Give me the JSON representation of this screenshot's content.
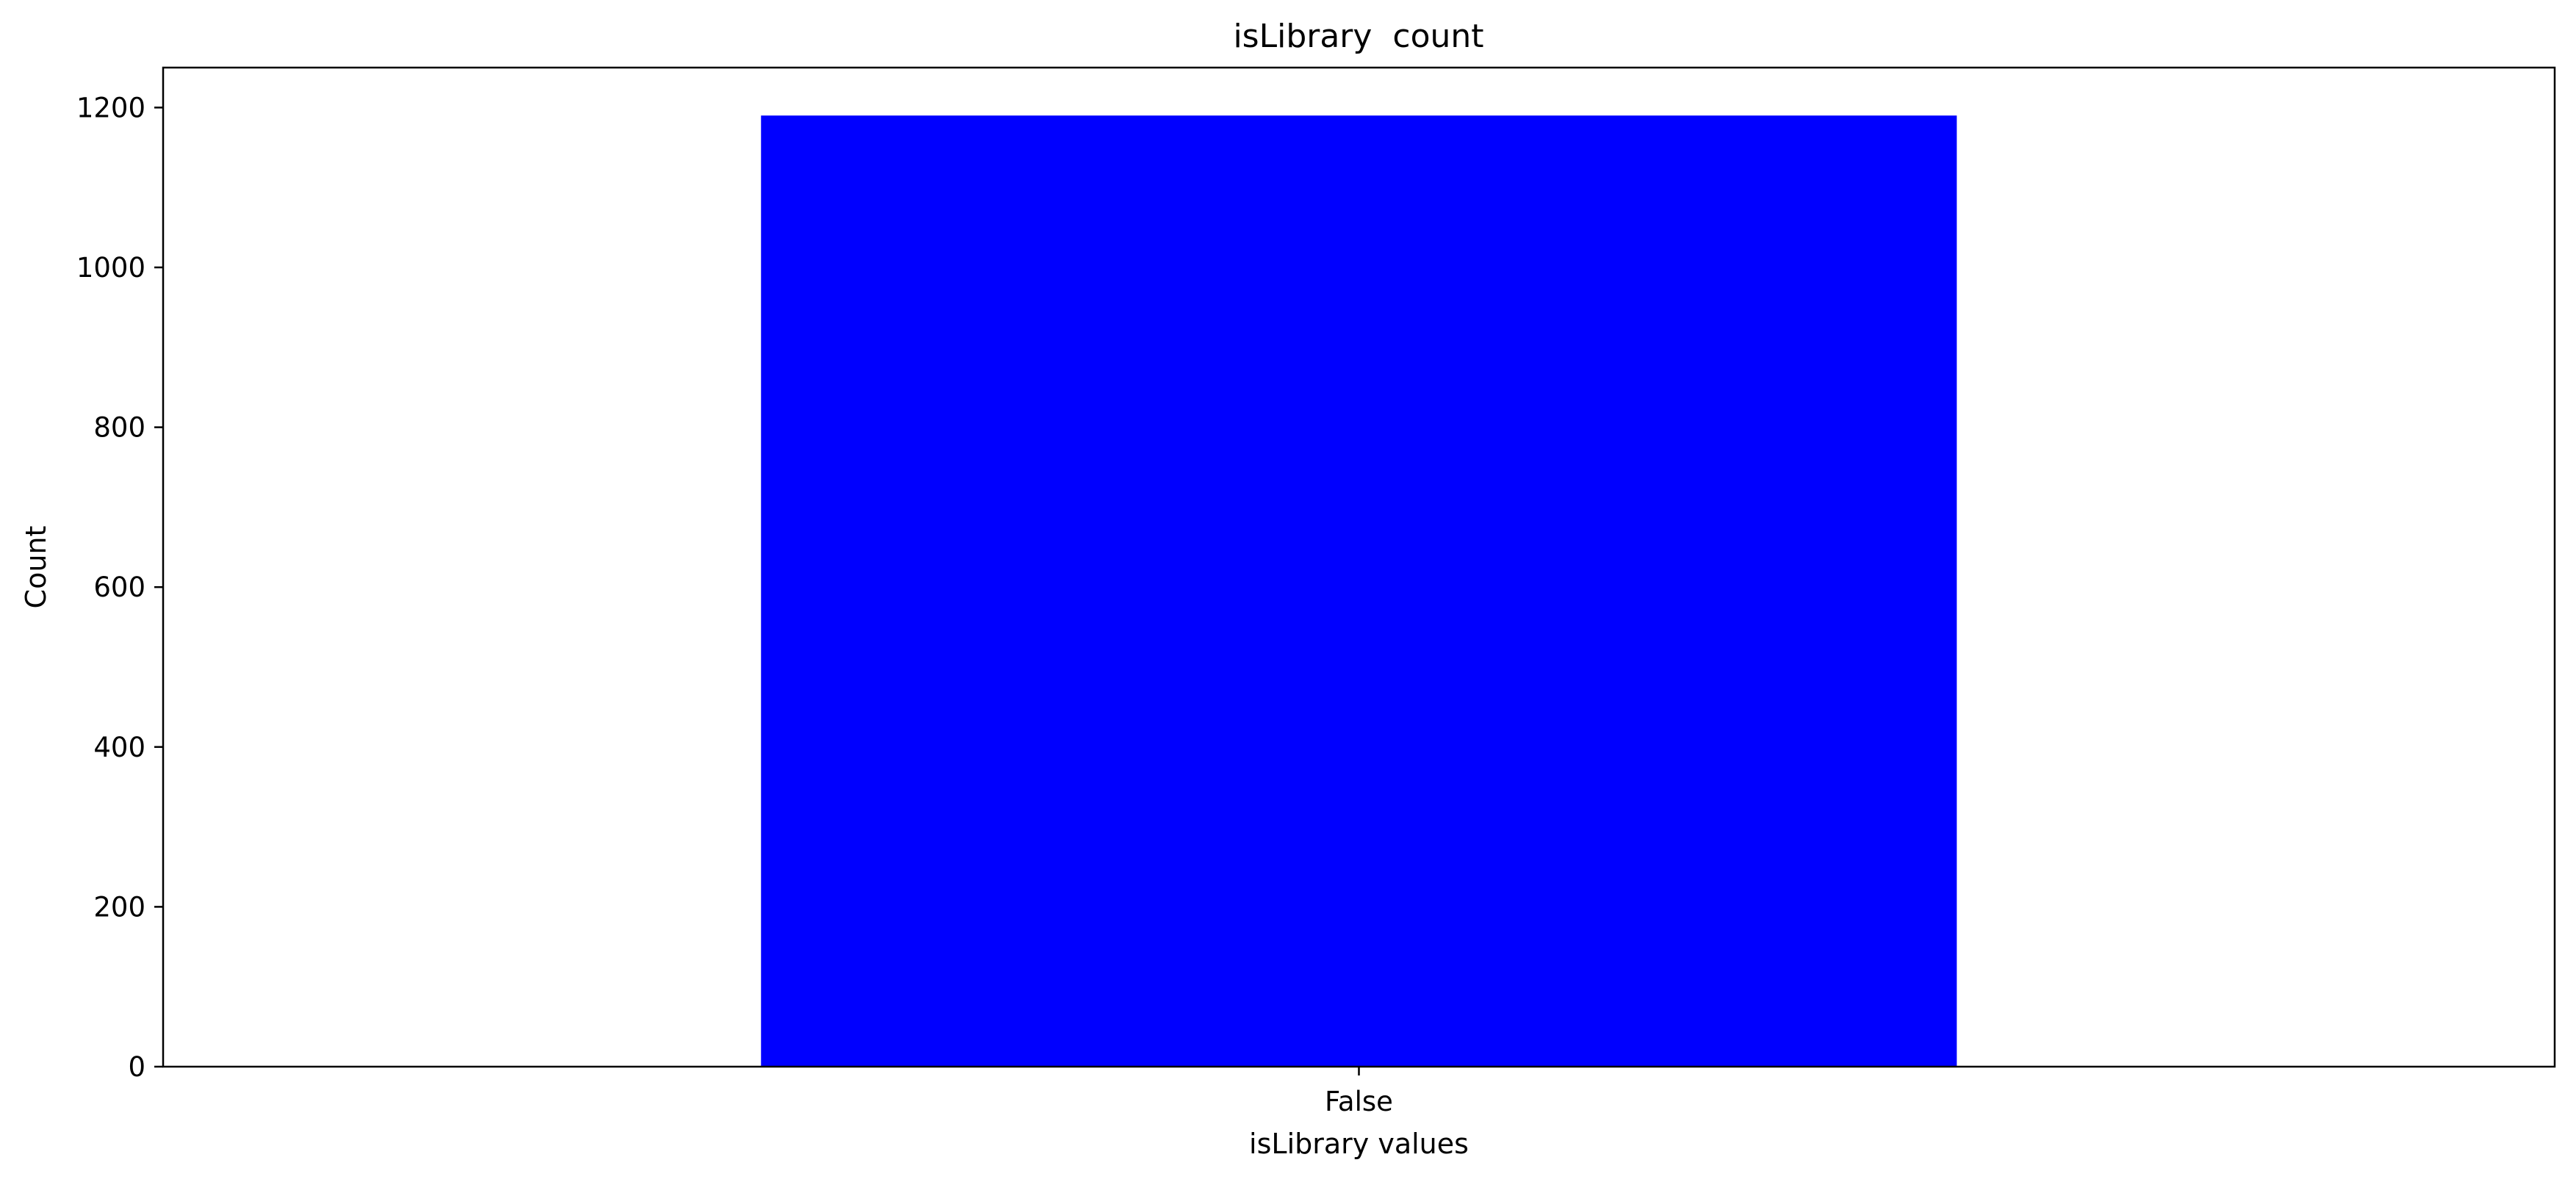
{
  "chart_data": {
    "type": "bar",
    "title": "isLibrary  count",
    "xlabel": "isLibrary values",
    "ylabel": "Count",
    "categories": [
      "False"
    ],
    "series": [
      {
        "values": [
          1190
        ]
      }
    ],
    "ylim": [
      0,
      1250
    ],
    "yticks": [
      0,
      200,
      400,
      600,
      800,
      1000,
      1200
    ],
    "ytick_labels": [
      "0",
      "200",
      "400",
      "600",
      "800",
      "1000",
      "1200"
    ],
    "grid": false,
    "legend": "none",
    "bar_color": "#0000ff"
  }
}
